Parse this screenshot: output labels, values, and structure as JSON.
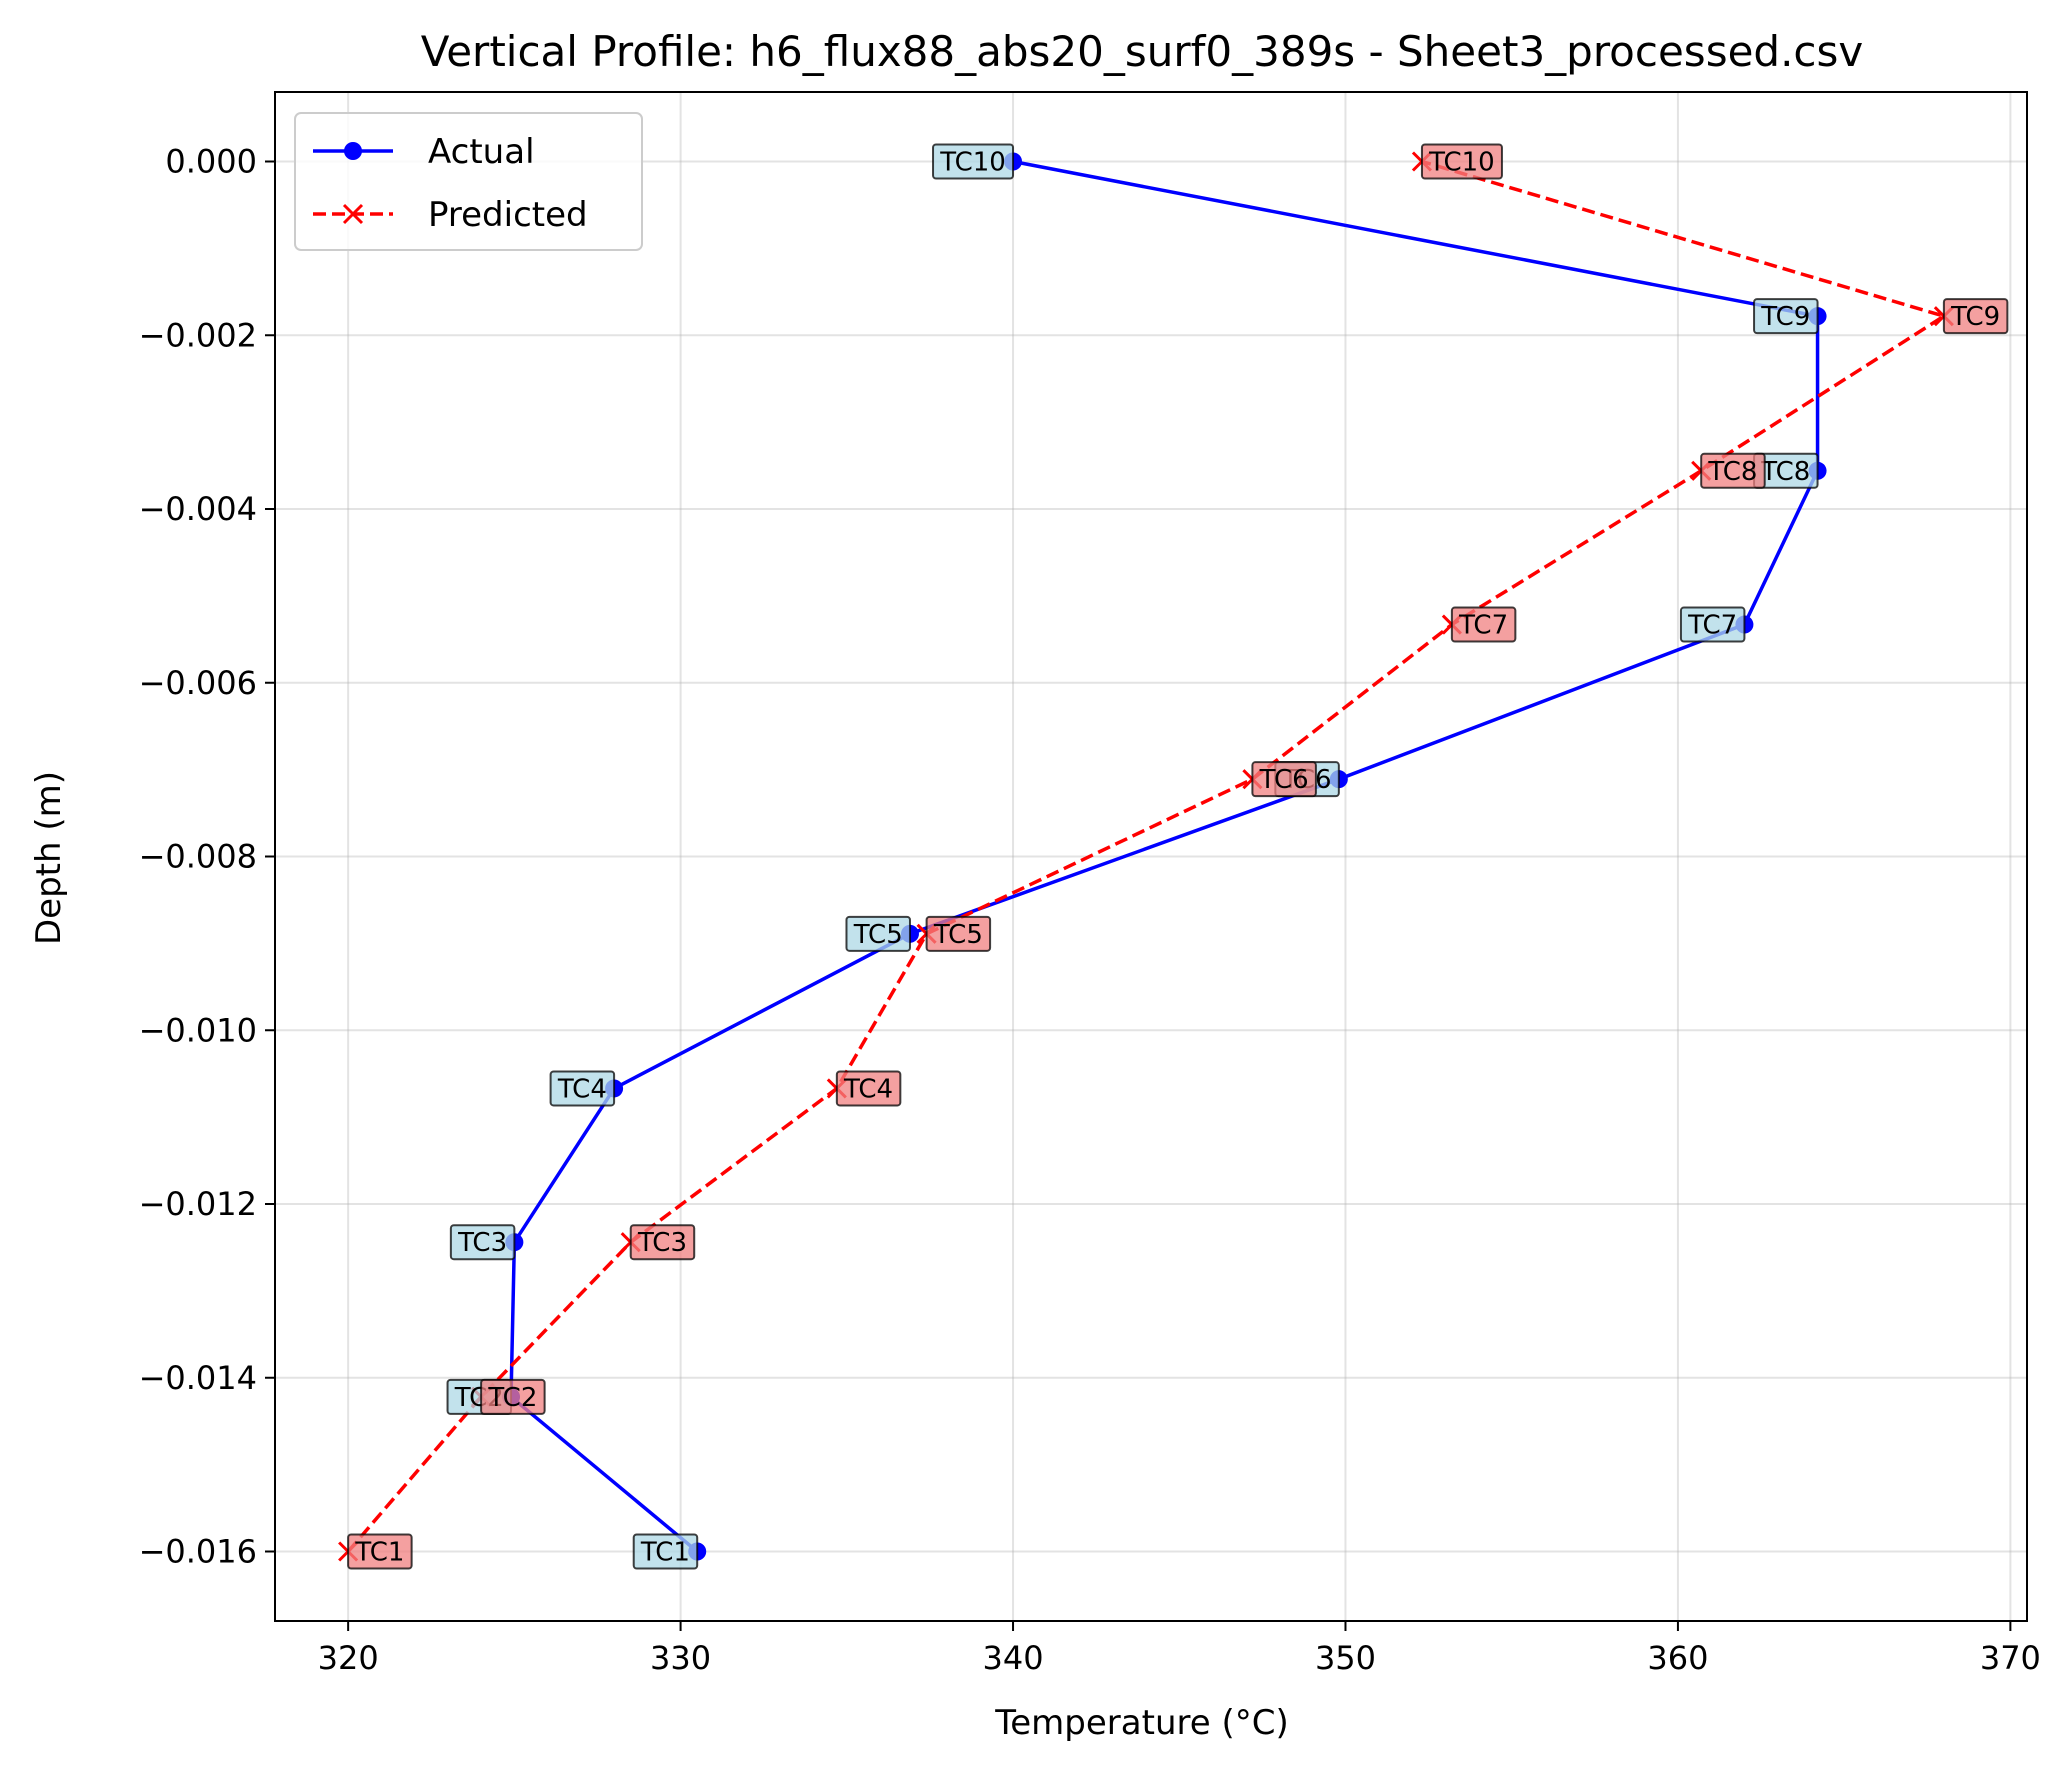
{
  "chart_data": {
    "type": "line",
    "title": "Vertical Profile: h6_flux88_abs20_surf0_389s - Sheet3_processed.csv",
    "xlabel": "Temperature (°C)",
    "ylabel": "Depth (m)",
    "xlim": [
      317.8,
      370.5
    ],
    "ylim": [
      -0.0168,
      0.0008
    ],
    "x_ticks": [
      320,
      330,
      340,
      350,
      360,
      370
    ],
    "x_tick_labels": [
      "320",
      "330",
      "340",
      "350",
      "360",
      "370"
    ],
    "y_ticks": [
      0.0,
      -0.002,
      -0.004,
      -0.006,
      -0.008,
      -0.01,
      -0.012,
      -0.014,
      -0.016
    ],
    "y_tick_labels": [
      "0.000",
      "−0.002",
      "−0.004",
      "−0.006",
      "−0.008",
      "−0.010",
      "−0.012",
      "−0.014",
      "−0.016"
    ],
    "grid": true,
    "legend_position": "top-left",
    "series": [
      {
        "name": "Actual",
        "color": "#0000ff",
        "line_style": "solid",
        "marker": "circle",
        "label_bg": "#add8e6",
        "points": [
          {
            "label": "TC1",
            "x": 330.5,
            "y": -0.016
          },
          {
            "label": "TC2",
            "x": 324.9,
            "y": -0.01422
          },
          {
            "label": "TC3",
            "x": 325.0,
            "y": -0.01244
          },
          {
            "label": "TC4",
            "x": 328.0,
            "y": -0.01067
          },
          {
            "label": "TC5",
            "x": 336.9,
            "y": -0.00889
          },
          {
            "label": "TC6",
            "x": 349.8,
            "y": -0.00711
          },
          {
            "label": "TC7",
            "x": 362.0,
            "y": -0.00533
          },
          {
            "label": "TC8",
            "x": 364.2,
            "y": -0.00356
          },
          {
            "label": "TC9",
            "x": 364.2,
            "y": -0.00178
          },
          {
            "label": "TC10",
            "x": 340.0,
            "y": 0.0
          }
        ]
      },
      {
        "name": "Predicted",
        "color": "#ff0000",
        "line_style": "dashed",
        "marker": "x",
        "label_bg": "#f08080",
        "points": [
          {
            "label": "TC1",
            "x": 320.0,
            "y": -0.016
          },
          {
            "label": "TC2",
            "x": 324.0,
            "y": -0.01422
          },
          {
            "label": "TC3",
            "x": 328.5,
            "y": -0.01244
          },
          {
            "label": "TC4",
            "x": 334.7,
            "y": -0.01067
          },
          {
            "label": "TC5",
            "x": 337.4,
            "y": -0.00889
          },
          {
            "label": "TC6",
            "x": 347.2,
            "y": -0.00711
          },
          {
            "label": "TC7",
            "x": 353.2,
            "y": -0.00533
          },
          {
            "label": "TC8",
            "x": 360.7,
            "y": -0.00356
          },
          {
            "label": "TC9",
            "x": 368.0,
            "y": -0.00178
          },
          {
            "label": "TC10",
            "x": 352.3,
            "y": 0.0
          }
        ]
      }
    ]
  }
}
